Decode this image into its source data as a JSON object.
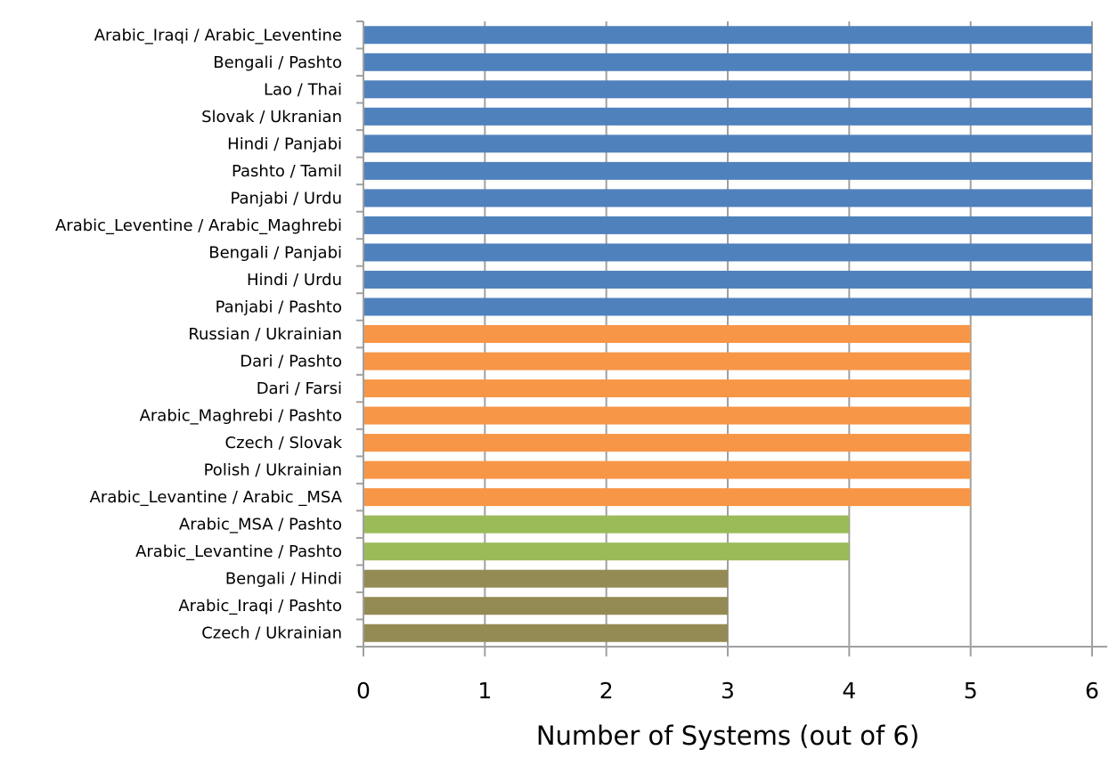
{
  "chart_data": {
    "type": "bar",
    "orientation": "horizontal",
    "title": "",
    "xlabel": "Number of Systems (out of 6)",
    "ylabel": "",
    "xlim": [
      0,
      6
    ],
    "xticks": [
      "0",
      "1",
      "2",
      "3",
      "4",
      "5",
      "6"
    ],
    "grid": "vertical",
    "legend": "none",
    "colors": {
      "6": "#4f81bd",
      "5": "#f79646",
      "4": "#9bbb59",
      "3": "#948a54"
    },
    "categories": [
      "Arabic_Iraqi / Arabic_Leventine",
      "Bengali / Pashto",
      "Lao / Thai",
      "Slovak / Ukranian",
      "Hindi / Panjabi",
      "Pashto / Tamil",
      "Panjabi / Urdu",
      "Arabic_Leventine / Arabic_Maghrebi",
      "Bengali / Panjabi",
      "Hindi / Urdu",
      "Panjabi / Pashto",
      "Russian / Ukrainian",
      "Dari / Pashto",
      "Dari / Farsi",
      "Arabic_Maghrebi / Pashto",
      "Czech / Slovak",
      "Polish / Ukrainian",
      "Arabic_Levantine / Arabic _MSA",
      "Arabic_MSA / Pashto",
      "Arabic_Levantine / Pashto",
      "Bengali / Hindi",
      "Arabic_Iraqi / Pashto",
      "Czech / Ukrainian"
    ],
    "values": [
      6,
      6,
      6,
      6,
      6,
      6,
      6,
      6,
      6,
      6,
      6,
      5,
      5,
      5,
      5,
      5,
      5,
      5,
      4,
      4,
      3,
      3,
      3
    ]
  }
}
